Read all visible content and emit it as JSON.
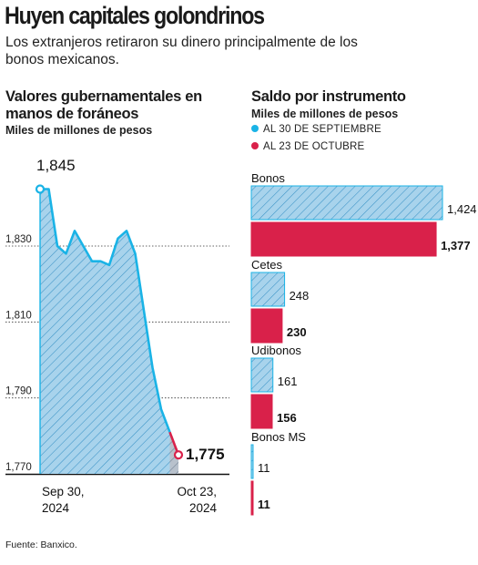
{
  "headline": "Huyen capitales golondrinos",
  "subhead": "Los extranjeros retiraron su dinero principalmente de los bonos mexicanos.",
  "source": "Fuente: Banxico.",
  "colors": {
    "blue": "#1ab3e6",
    "red": "#d9214a",
    "blue_fill": "#a8d3ec",
    "red_fill": "#d9214a"
  },
  "chart_data": [
    {
      "type": "area",
      "title": "Valores gubernamentales en manos de foráneos",
      "ylabel": "Miles de millones de pesos",
      "ylim": [
        1770,
        1848
      ],
      "yticks": [
        "1,770",
        "1,790",
        "1,810",
        "1,830"
      ],
      "ytick_values": [
        1770,
        1790,
        1810,
        1830
      ],
      "x_start_label": "Sep 30, 2024",
      "x_end_label": "Oct 23, 2024",
      "values": [
        1845,
        1845,
        1830,
        1828,
        1834,
        1830,
        1826,
        1826,
        1825,
        1832,
        1834,
        1828,
        1813,
        1798,
        1787,
        1781,
        1775
      ],
      "series_split_index": 15,
      "start_label": "1,845",
      "end_label": "1,775"
    },
    {
      "type": "bar",
      "title": "Saldo por instrumento",
      "subtitle": "Miles de millones de pesos",
      "legend": [
        {
          "name": "AL 30 DE SEPTIEMBRE",
          "color": "#1ab3e6"
        },
        {
          "name": "AL 23 DE OCTUBRE",
          "color": "#d9214a"
        }
      ],
      "categories": [
        "Bonos",
        "Cetes",
        "Udibonos",
        "Bonos MS"
      ],
      "series": [
        {
          "name": "AL 30 DE SEPTIEMBRE",
          "values": [
            1424,
            248,
            161,
            11
          ],
          "labels": [
            "1,424",
            "248",
            "161",
            "11"
          ]
        },
        {
          "name": "AL 23 DE OCTUBRE",
          "values": [
            1377,
            230,
            156,
            11
          ],
          "labels": [
            "1,377",
            "230",
            "156",
            "11"
          ]
        }
      ],
      "xlim": [
        0,
        1424
      ]
    }
  ]
}
